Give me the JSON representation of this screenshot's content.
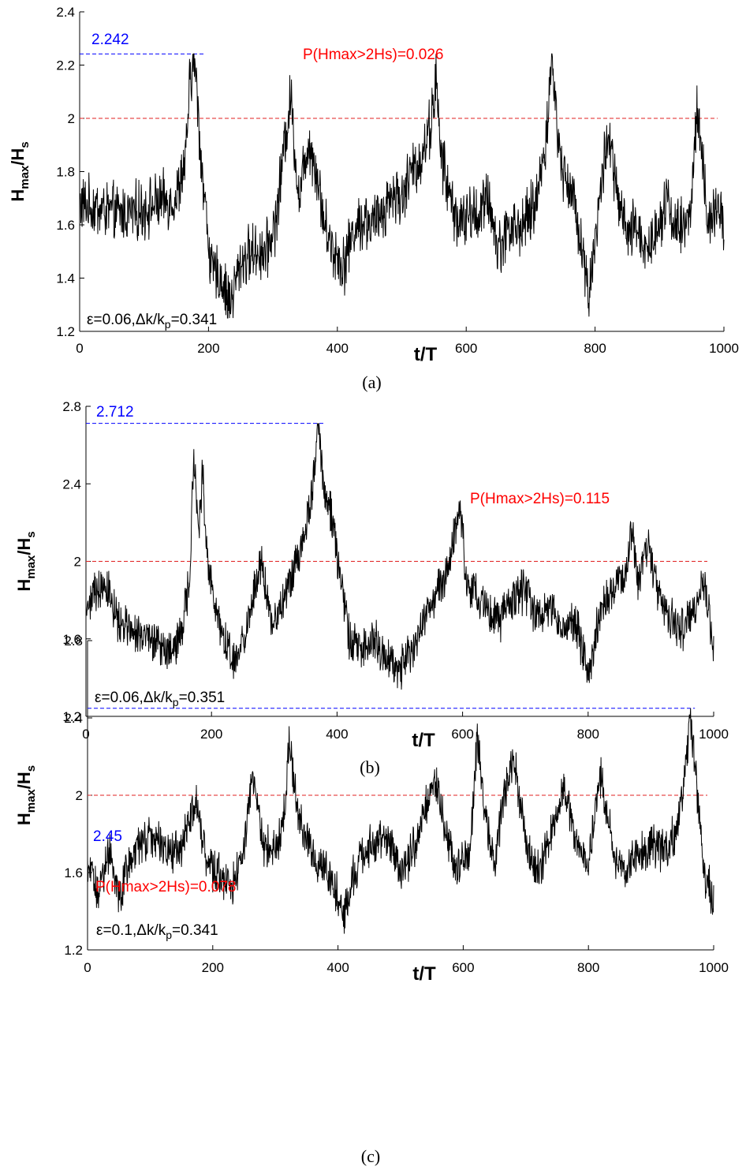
{
  "colors": {
    "series": "#000000",
    "max_line": "#0000ff",
    "threshold_line": "#e02020",
    "prob_text": "#ff0000",
    "max_text": "#0000ff"
  },
  "chart_data": [
    {
      "type": "line",
      "caption": "(a)",
      "xlabel": "t/T",
      "ylabel": {
        "base": "H",
        "sub": "max",
        "slash": "/H",
        "sub2": "s"
      },
      "xlim": [
        0,
        1000
      ],
      "ylim": [
        1.2,
        2.4
      ],
      "xticks": [
        "0",
        "200",
        "400",
        "600",
        "800",
        "1000"
      ],
      "yticks": [
        "1.2",
        "1.4",
        "1.6",
        "1.8",
        "2",
        "2.2",
        "2.4"
      ],
      "ytick_values": [
        1.2,
        1.4,
        1.6,
        1.8,
        2.0,
        2.2,
        2.4
      ],
      "threshold": 2.0,
      "max_value": 2.242,
      "max_label": "2.242",
      "max_line_x": [
        0,
        195
      ],
      "probability_label": "P(Hmax>2Hs)=0.026",
      "parameter_label": {
        "eps": "ε=0.06,Δk/k",
        "sub": "p",
        "tail": "=0.341"
      },
      "baseline": 1.64,
      "series": [
        {
          "x": [
            0,
            30,
            60,
            90,
            120,
            150,
            165,
            170,
            178,
            190,
            205,
            220,
            233,
            250,
            270,
            290,
            305,
            320,
            328,
            340,
            355,
            368,
            380,
            395,
            410,
            425,
            440,
            455,
            470,
            485,
            500,
            515,
            530,
            545,
            553,
            560,
            575,
            590,
            605,
            620,
            635,
            650,
            665,
            680,
            695,
            710,
            725,
            733,
            745,
            760,
            775,
            790,
            805,
            820,
            835,
            850,
            865,
            880,
            895,
            910,
            925,
            940,
            950,
            958,
            966,
            975,
            985,
            1000
          ],
          "values": [
            1.68,
            1.66,
            1.64,
            1.65,
            1.68,
            1.7,
            1.85,
            2.1,
            2.24,
            1.8,
            1.42,
            1.4,
            1.3,
            1.46,
            1.5,
            1.5,
            1.62,
            1.95,
            2.08,
            1.7,
            1.92,
            1.8,
            1.6,
            1.5,
            1.45,
            1.58,
            1.62,
            1.6,
            1.65,
            1.72,
            1.7,
            1.8,
            1.85,
            1.98,
            2.15,
            1.88,
            1.7,
            1.6,
            1.64,
            1.64,
            1.7,
            1.5,
            1.6,
            1.58,
            1.62,
            1.7,
            1.95,
            2.24,
            1.85,
            1.75,
            1.6,
            1.34,
            1.65,
            1.95,
            1.7,
            1.55,
            1.6,
            1.5,
            1.58,
            1.7,
            1.6,
            1.58,
            1.7,
            2.05,
            1.85,
            1.6,
            1.65,
            1.6
          ]
        }
      ]
    },
    {
      "type": "line",
      "caption": "(b)",
      "xlabel": "t/T",
      "ylabel": {
        "base": "H",
        "sub": "max",
        "slash": "/H",
        "sub2": "s"
      },
      "xlim": [
        0,
        1000
      ],
      "ylim": [
        1.2,
        2.8
      ],
      "xticks": [
        "0",
        "200",
        "400",
        "600",
        "800",
        "1000"
      ],
      "yticks": [
        "1.2",
        "1.6",
        "2",
        "2.4",
        "2.8"
      ],
      "ytick_values": [
        1.2,
        1.6,
        2.0,
        2.4,
        2.8
      ],
      "threshold": 2.0,
      "max_value": 2.712,
      "max_label": "2.712",
      "max_line_x": [
        0,
        380
      ],
      "probability_label": "P(Hmax>2Hs)=0.115",
      "parameter_label": {
        "eps": "ε=0.06,Δk/k",
        "sub": "p",
        "tail": "=0.351"
      },
      "baseline": 1.7,
      "series": [
        {
          "x": [
            0,
            15,
            30,
            50,
            70,
            90,
            110,
            130,
            150,
            165,
            172,
            180,
            186,
            195,
            210,
            225,
            235,
            250,
            265,
            280,
            295,
            310,
            325,
            340,
            355,
            363,
            370,
            378,
            390,
            405,
            420,
            440,
            460,
            480,
            500,
            520,
            540,
            560,
            575,
            590,
            597,
            605,
            620,
            640,
            660,
            680,
            700,
            720,
            740,
            760,
            780,
            800,
            820,
            840,
            860,
            870,
            880,
            895,
            910,
            930,
            950,
            970,
            985,
            1000
          ],
          "values": [
            1.75,
            1.85,
            1.9,
            1.7,
            1.65,
            1.6,
            1.58,
            1.55,
            1.6,
            1.9,
            2.55,
            2.2,
            2.45,
            1.95,
            1.7,
            1.55,
            1.45,
            1.6,
            1.8,
            2.0,
            1.7,
            1.75,
            1.9,
            2.05,
            2.25,
            2.45,
            2.71,
            2.4,
            2.25,
            1.95,
            1.6,
            1.55,
            1.6,
            1.5,
            1.45,
            1.55,
            1.7,
            1.85,
            1.95,
            2.2,
            2.3,
            1.9,
            1.85,
            1.75,
            1.7,
            1.8,
            1.85,
            1.7,
            1.75,
            1.65,
            1.7,
            1.4,
            1.75,
            1.85,
            1.95,
            2.15,
            1.9,
            2.1,
            1.85,
            1.7,
            1.65,
            1.75,
            1.9,
            1.55
          ]
        }
      ]
    },
    {
      "type": "line",
      "caption": "(c)",
      "xlabel": "t/T",
      "ylabel": {
        "base": "H",
        "sub": "max",
        "slash": "/H",
        "sub2": "s"
      },
      "xlim": [
        0,
        1000
      ],
      "ylim": [
        1.2,
        2.8
      ],
      "xticks": [
        "0",
        "200",
        "400",
        "600",
        "800",
        "1000"
      ],
      "yticks": [
        "1.2",
        "1.6",
        "2",
        "2.4",
        "2.8"
      ],
      "ytick_values": [
        1.2,
        1.6,
        2.0,
        2.4,
        2.8
      ],
      "threshold": 2.0,
      "max_value": 2.45,
      "max_label": "2.45",
      "max_line_x": [
        0,
        970
      ],
      "probability_label": "P(Hmax>2Hs)=0.078",
      "parameter_label": {
        "eps": "ε=0.1,Δk/k",
        "sub": "p",
        "tail": "=0.341"
      },
      "baseline": 1.72,
      "series": [
        {
          "x": [
            0,
            15,
            35,
            50,
            70,
            90,
            110,
            130,
            150,
            172,
            190,
            210,
            230,
            250,
            265,
            280,
            300,
            315,
            322,
            335,
            350,
            370,
            390,
            410,
            425,
            440,
            460,
            480,
            500,
            520,
            540,
            555,
            570,
            590,
            610,
            622,
            635,
            650,
            665,
            680,
            700,
            720,
            740,
            760,
            780,
            800,
            820,
            840,
            860,
            880,
            900,
            920,
            940,
            955,
            962,
            970,
            985,
            1000
          ],
          "values": [
            1.65,
            1.5,
            1.72,
            1.45,
            1.7,
            1.75,
            1.8,
            1.7,
            1.72,
            2.0,
            1.65,
            1.6,
            1.5,
            1.75,
            2.12,
            1.75,
            1.7,
            1.95,
            2.3,
            1.9,
            1.75,
            1.65,
            1.55,
            1.4,
            1.6,
            1.7,
            1.75,
            1.8,
            1.6,
            1.72,
            1.95,
            2.1,
            1.85,
            1.6,
            1.7,
            2.3,
            1.9,
            1.65,
            2.0,
            2.2,
            1.75,
            1.6,
            1.8,
            2.05,
            1.75,
            1.65,
            2.1,
            1.7,
            1.6,
            1.7,
            1.75,
            1.7,
            1.8,
            2.1,
            2.45,
            2.15,
            1.6,
            1.45
          ]
        }
      ]
    }
  ]
}
